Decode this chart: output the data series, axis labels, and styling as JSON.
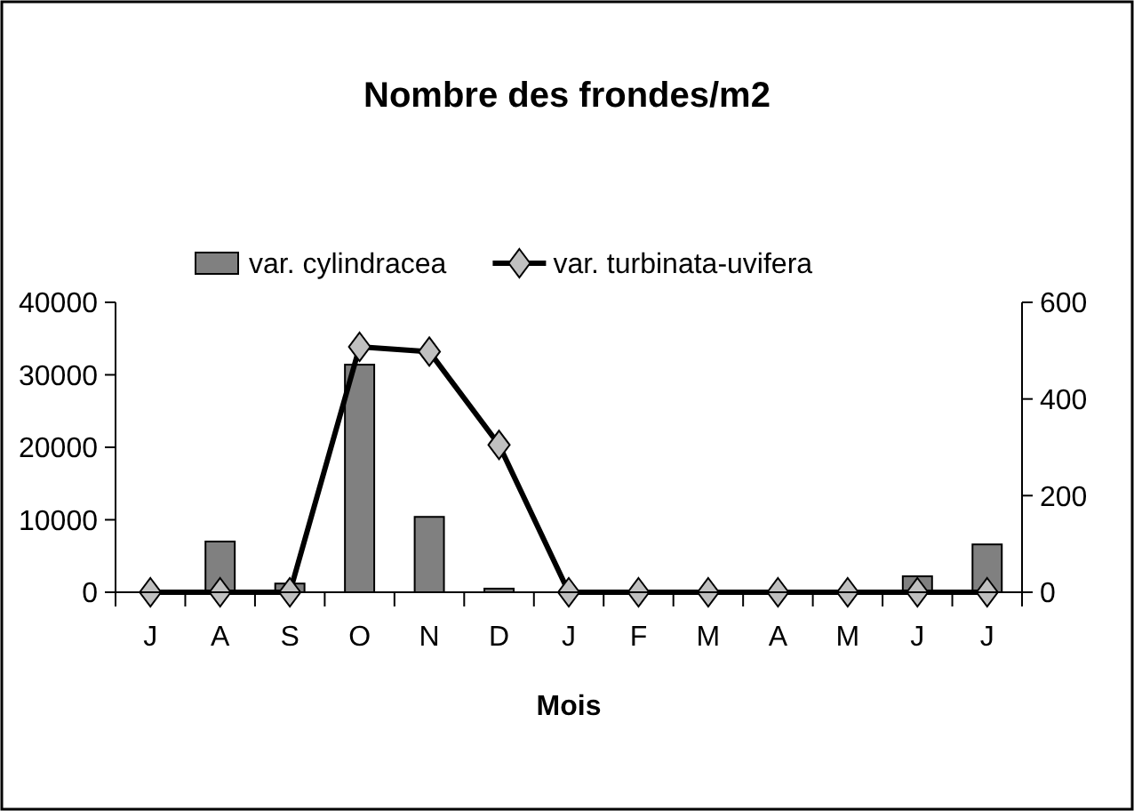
{
  "chart_data": {
    "type": "bar",
    "title": "Nombre des frondes/m2",
    "xlabel": "Mois",
    "categories": [
      "J",
      "A",
      "S",
      "O",
      "N",
      "D",
      "J",
      "F",
      "M",
      "A",
      "M",
      "J",
      "J"
    ],
    "series": [
      {
        "name": "var. cylindracea",
        "color": "#808080",
        "values": [
          0,
          7000,
          1200,
          31400,
          10400,
          500,
          0,
          0,
          0,
          0,
          0,
          2200,
          6600
        ]
      },
      {
        "name": "var. turbinata-uvifera",
        "type": "line",
        "axis": "y2",
        "color": "#000000",
        "marker": "diamond",
        "values": [
          0,
          0,
          0,
          508,
          498,
          305,
          0,
          0,
          0,
          0,
          0,
          0,
          0
        ]
      }
    ],
    "ylim": [
      0,
      40000
    ],
    "yticks": [
      0,
      10000,
      20000,
      30000,
      40000
    ],
    "y2lim": [
      0,
      600
    ],
    "y2ticks": [
      0,
      200,
      400,
      600
    ],
    "grid": false,
    "legend": "top"
  }
}
